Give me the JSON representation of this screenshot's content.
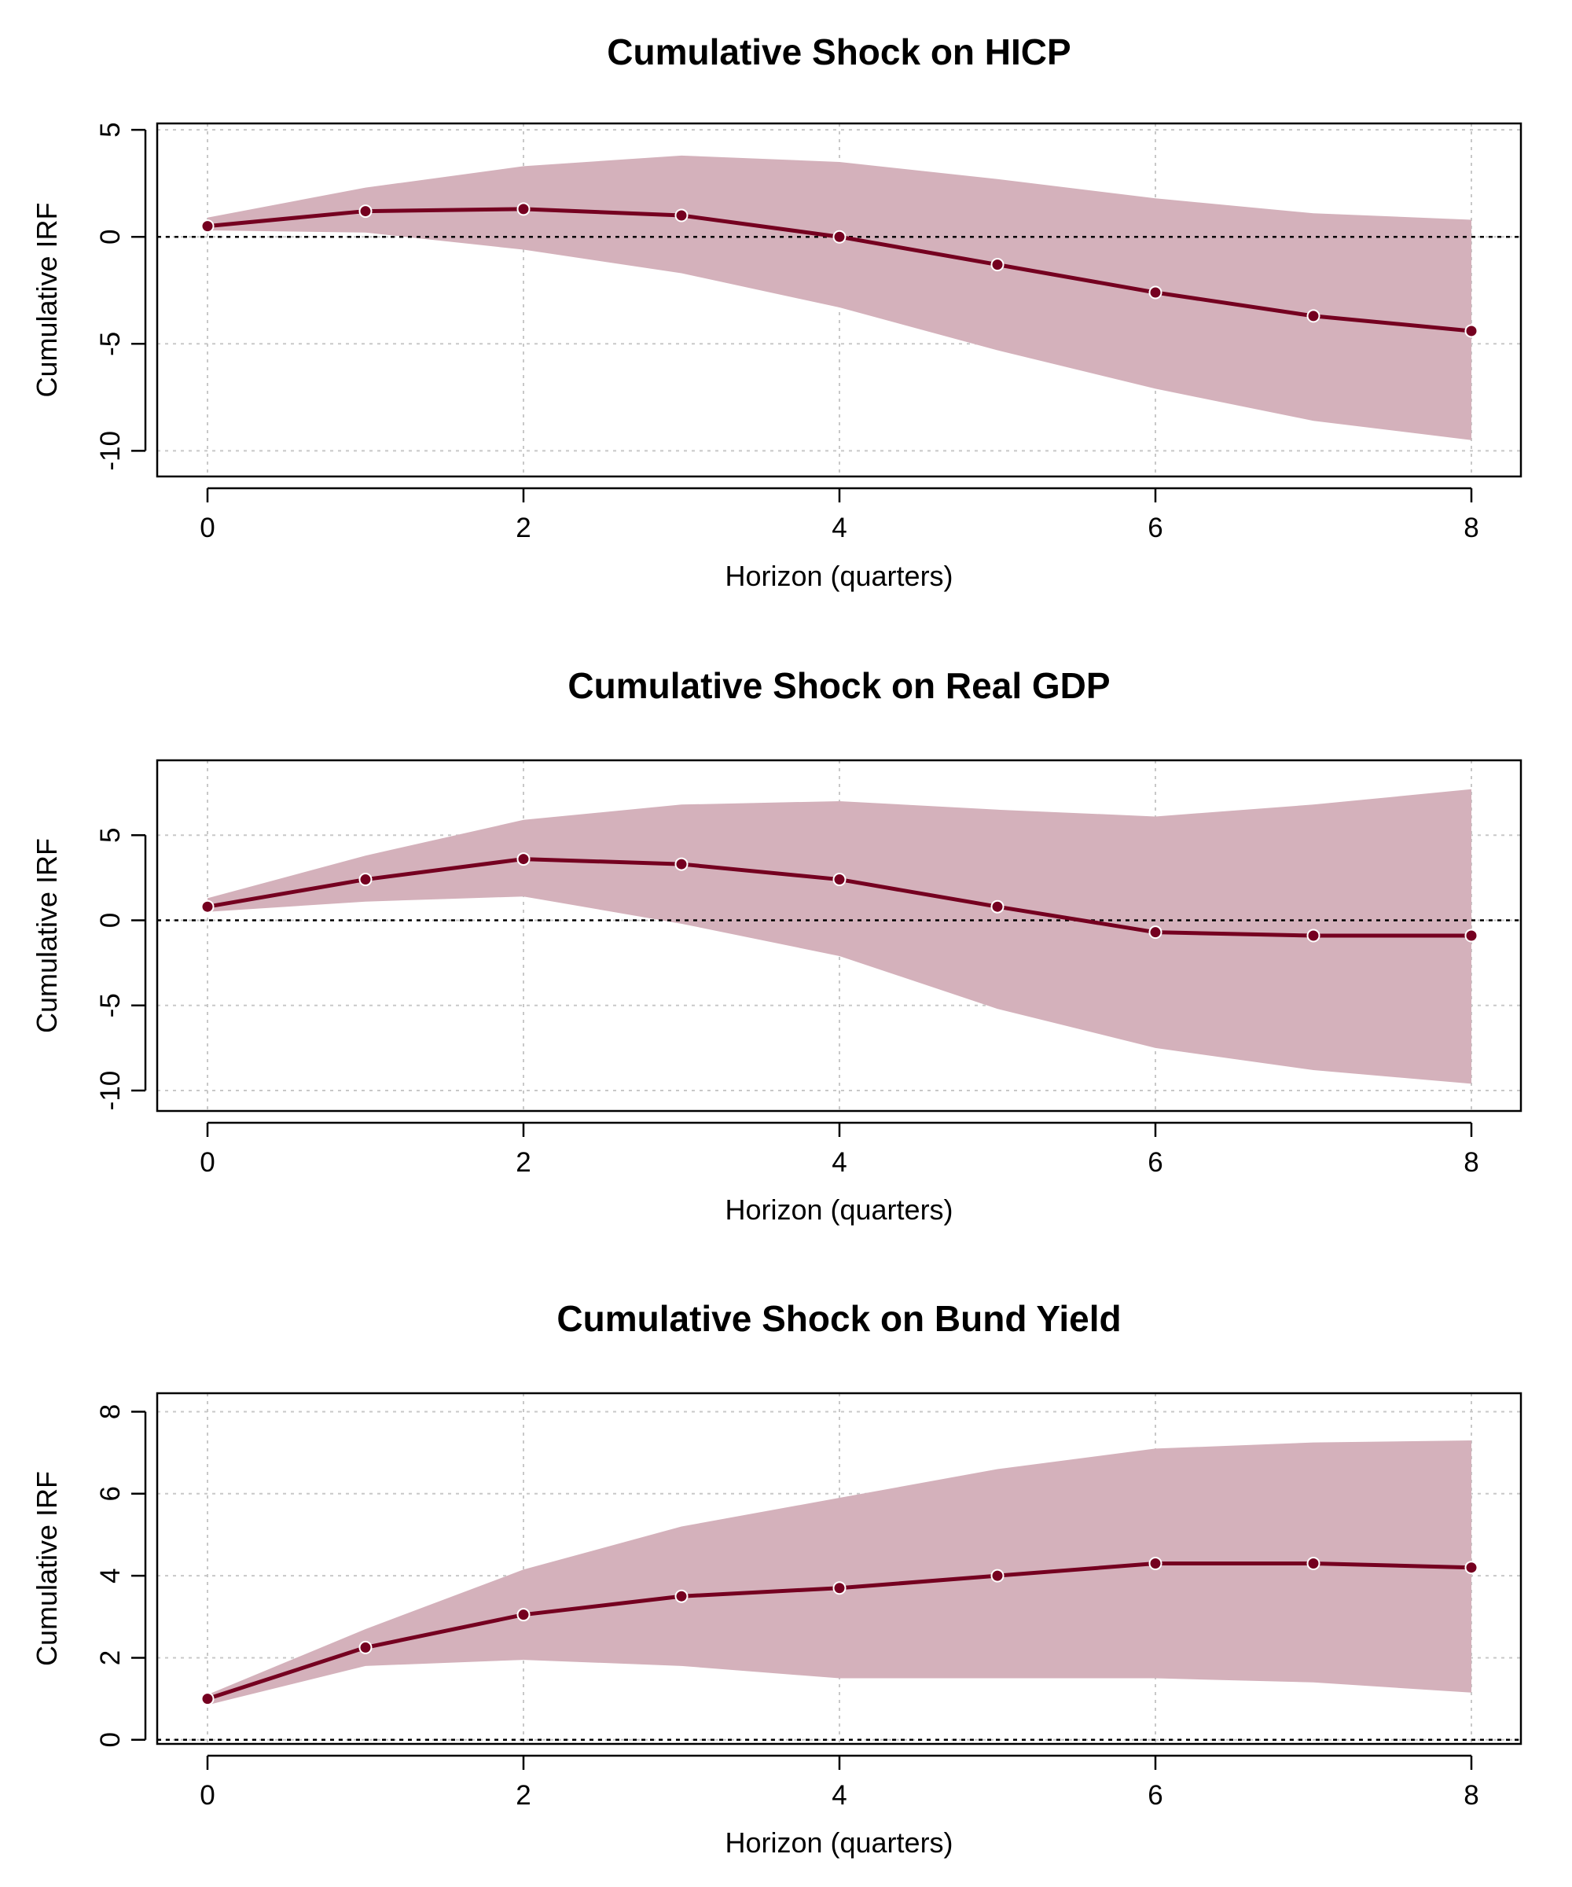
{
  "colors": {
    "band": "#d4b1bb",
    "line": "#750020",
    "grid": "#c8c8c8",
    "zero_line": "#000000"
  },
  "chart_data": [
    {
      "type": "line",
      "title": "Cumulative Shock on HICP",
      "xlabel": "Horizon (quarters)",
      "ylabel": "Cumulative IRF",
      "x": [
        0,
        1,
        2,
        3,
        4,
        5,
        6,
        7,
        8
      ],
      "xticks": [
        "0",
        "2",
        "4",
        "6",
        "8"
      ],
      "yticks": [
        "5",
        "0",
        "-5",
        "-10"
      ],
      "ylim": [
        -11.2,
        5.3
      ],
      "grid": true,
      "zero_line": "dotted",
      "series": [
        {
          "values": [
            0.5,
            1.2,
            1.3,
            1.0,
            0.0,
            -1.3,
            -2.6,
            -3.7,
            -4.4
          ]
        }
      ],
      "band": {
        "lower": [
          0.3,
          0.2,
          -0.6,
          -1.7,
          -3.3,
          -5.3,
          -7.1,
          -8.6,
          -9.5
        ],
        "upper": [
          0.9,
          2.3,
          3.3,
          3.8,
          3.5,
          2.7,
          1.8,
          1.1,
          0.8
        ]
      }
    },
    {
      "type": "line",
      "title": "Cumulative Shock on Real GDP",
      "xlabel": "Horizon (quarters)",
      "ylabel": "Cumulative IRF",
      "x": [
        0,
        1,
        2,
        3,
        4,
        5,
        6,
        7,
        8
      ],
      "xticks": [
        "0",
        "2",
        "4",
        "6",
        "8"
      ],
      "yticks": [
        "5",
        "0",
        "-5",
        "-10"
      ],
      "ylim": [
        -11.2,
        9.4
      ],
      "grid": true,
      "zero_line": "dotted",
      "series": [
        {
          "values": [
            0.8,
            2.4,
            3.6,
            3.3,
            2.4,
            0.8,
            -0.7,
            -0.9,
            -0.9
          ]
        }
      ],
      "band": {
        "lower": [
          0.5,
          1.1,
          1.4,
          -0.2,
          -2.1,
          -5.2,
          -7.5,
          -8.8,
          -9.6
        ],
        "upper": [
          1.3,
          3.8,
          5.9,
          6.8,
          7.0,
          6.5,
          6.1,
          6.8,
          7.7
        ]
      }
    },
    {
      "type": "line",
      "title": "Cumulative Shock on Bund Yield",
      "xlabel": "Horizon (quarters)",
      "ylabel": "Cumulative IRF",
      "x": [
        0,
        1,
        2,
        3,
        4,
        5,
        6,
        7,
        8
      ],
      "xticks": [
        "0",
        "2",
        "4",
        "6",
        "8"
      ],
      "yticks": [
        "8",
        "6",
        "4",
        "2",
        "0"
      ],
      "ylim": [
        -0.1,
        8.45
      ],
      "grid": true,
      "zero_line": "dotted",
      "series": [
        {
          "values": [
            1.0,
            2.25,
            3.05,
            3.5,
            3.7,
            4.0,
            4.3,
            4.3,
            4.2
          ]
        }
      ],
      "band": {
        "lower": [
          0.85,
          1.8,
          1.95,
          1.8,
          1.5,
          1.5,
          1.5,
          1.4,
          1.15
        ],
        "upper": [
          1.1,
          2.7,
          4.15,
          5.2,
          5.9,
          6.6,
          7.1,
          7.25,
          7.3
        ]
      }
    }
  ]
}
